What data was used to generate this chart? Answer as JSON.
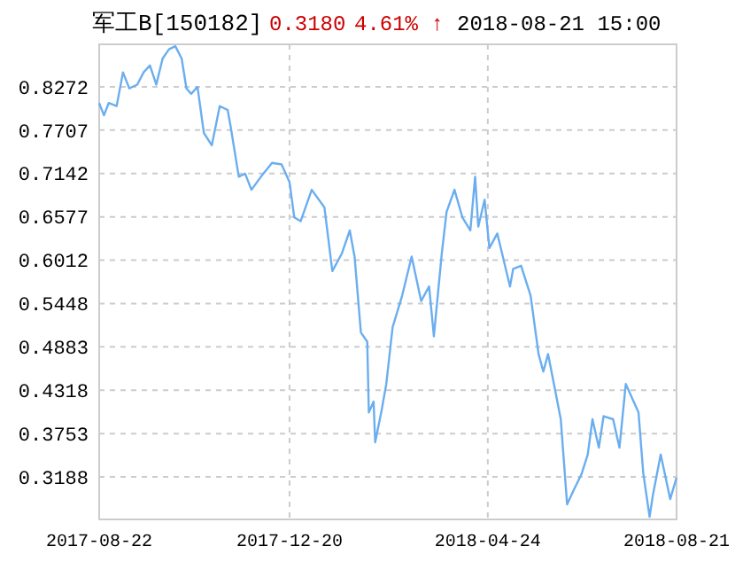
{
  "chart_data": {
    "type": "line",
    "title": "军工B[150182]",
    "annotations": [
      "0.3180",
      "4.61% ↑",
      "2018-08-21 15:00"
    ],
    "x": [
      "2017-08-22",
      "2017-08-25",
      "2017-08-28",
      "2017-09-02",
      "2017-09-06",
      "2017-09-10",
      "2017-09-15",
      "2017-09-19",
      "2017-09-23",
      "2017-09-27",
      "2017-10-01",
      "2017-10-05",
      "2017-10-09",
      "2017-10-13",
      "2017-10-16",
      "2017-10-19",
      "2017-10-23",
      "2017-10-27",
      "2017-11-01",
      "2017-11-06",
      "2017-11-11",
      "2017-11-13",
      "2017-11-18",
      "2017-11-22",
      "2017-11-26",
      "2017-12-02",
      "2017-12-09",
      "2017-12-15",
      "2017-12-20",
      "2017-12-23",
      "2017-12-27",
      "2018-01-03",
      "2018-01-11",
      "2018-01-16",
      "2018-01-22",
      "2018-01-27",
      "2018-01-30",
      "2018-02-03",
      "2018-02-07",
      "2018-02-08",
      "2018-02-11",
      "2018-02-12",
      "2018-02-16",
      "2018-02-19",
      "2018-02-23",
      "2018-03-01",
      "2018-03-07",
      "2018-03-13",
      "2018-03-18",
      "2018-03-21",
      "2018-03-26",
      "2018-03-29",
      "2018-04-03",
      "2018-04-08",
      "2018-04-13",
      "2018-04-16",
      "2018-04-18",
      "2018-04-22",
      "2018-04-25",
      "2018-04-30",
      "2018-05-08",
      "2018-05-10",
      "2018-05-15",
      "2018-05-21",
      "2018-05-26",
      "2018-05-29",
      "2018-06-01",
      "2018-06-06",
      "2018-06-09",
      "2018-06-13",
      "2018-06-17",
      "2018-06-22",
      "2018-06-26",
      "2018-06-29",
      "2018-07-03",
      "2018-07-06",
      "2018-07-12",
      "2018-07-16",
      "2018-07-20",
      "2018-07-28",
      "2018-07-31",
      "2018-08-04",
      "2018-08-06",
      "2018-08-11",
      "2018-08-17",
      "2018-08-21"
    ],
    "series": [
      {
        "color": "#6aaef0",
        "values": [
          0.806,
          0.79,
          0.806,
          0.802,
          0.846,
          0.825,
          0.83,
          0.846,
          0.855,
          0.83,
          0.864,
          0.876,
          0.88,
          0.864,
          0.825,
          0.818,
          0.827,
          0.767,
          0.751,
          0.802,
          0.797,
          0.774,
          0.71,
          0.714,
          0.693,
          0.71,
          0.728,
          0.726,
          0.703,
          0.657,
          0.652,
          0.693,
          0.67,
          0.587,
          0.61,
          0.64,
          0.606,
          0.507,
          0.495,
          0.403,
          0.417,
          0.364,
          0.405,
          0.44,
          0.514,
          0.555,
          0.606,
          0.548,
          0.567,
          0.502,
          0.61,
          0.664,
          0.693,
          0.657,
          0.64,
          0.71,
          0.645,
          0.68,
          0.617,
          0.636,
          0.567,
          0.59,
          0.594,
          0.555,
          0.479,
          0.456,
          0.479,
          0.426,
          0.394,
          0.283,
          0.301,
          0.322,
          0.348,
          0.394,
          0.357,
          0.398,
          0.394,
          0.357,
          0.44,
          0.403,
          0.324,
          0.267,
          0.294,
          0.348,
          0.29,
          0.318
        ]
      }
    ],
    "xlim": [
      "2017-08-22",
      "2018-08-21"
    ],
    "xticks": [
      "2017-08-22",
      "2017-12-20",
      "2018-04-24",
      "2018-08-21"
    ],
    "ylim": [
      0.2635,
      0.8825
    ],
    "yticks": [
      0.3188,
      0.3753,
      0.4318,
      0.4883,
      0.5448,
      0.6012,
      0.6577,
      0.7142,
      0.7707,
      0.8272
    ],
    "grid": true,
    "marker": "none",
    "line_style": "solid"
  }
}
